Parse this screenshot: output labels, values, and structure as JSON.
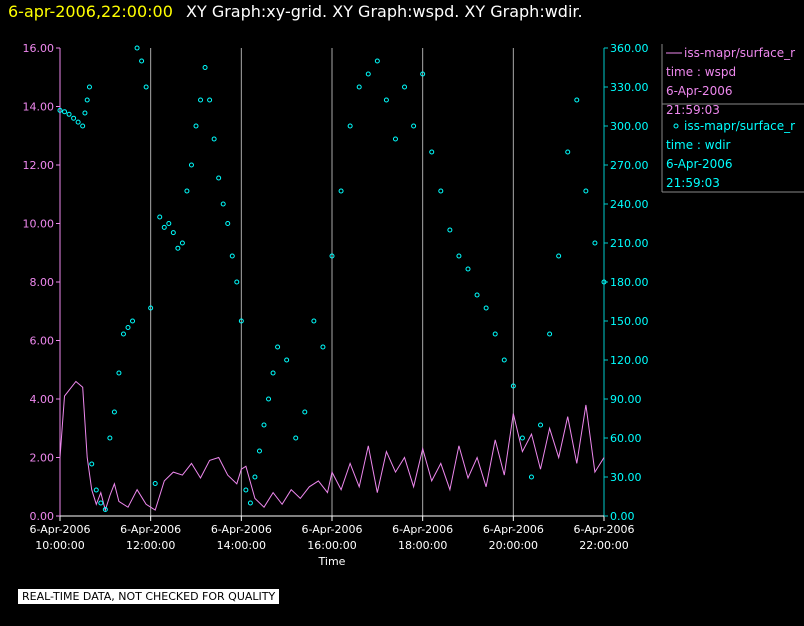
{
  "header": {
    "date_time": "6-apr-2006,22:00:00",
    "graphs": "XY Graph:xy-grid.  XY Graph:wspd.  XY Graph:wdir."
  },
  "footer": {
    "note": "REAL-TIME DATA, NOT CHECKED FOR QUALITY"
  },
  "chart_data": {
    "type": "line",
    "xlabel": "Time",
    "x_ticks": [
      {
        "date": "6-Apr-2006",
        "time": "10:00:00",
        "hour": 10
      },
      {
        "date": "6-Apr-2006",
        "time": "12:00:00",
        "hour": 12
      },
      {
        "date": "6-Apr-2006",
        "time": "14:00:00",
        "hour": 14
      },
      {
        "date": "6-Apr-2006",
        "time": "16:00:00",
        "hour": 16
      },
      {
        "date": "6-Apr-2006",
        "time": "18:00:00",
        "hour": 18
      },
      {
        "date": "6-Apr-2006",
        "time": "20:00:00",
        "hour": 20
      },
      {
        "date": "6-Apr-2006",
        "time": "22:00:00",
        "hour": 22
      }
    ],
    "xlim_hours": [
      10,
      22
    ],
    "y_left": {
      "ylim": [
        0,
        16
      ],
      "ticks": [
        "0.00",
        "2.00",
        "4.00",
        "6.00",
        "8.00",
        "10.00",
        "12.00",
        "14.00",
        "16.00"
      ]
    },
    "y_right": {
      "ylim": [
        0,
        360
      ],
      "ticks": [
        "0.00",
        "30.00",
        "60.00",
        "90.00",
        "120.00",
        "150.00",
        "180.00",
        "210.00",
        "240.00",
        "270.00",
        "300.00",
        "330.00",
        "360.00"
      ]
    },
    "grid": "vertical at each x tick",
    "legend": [
      {
        "symbol": "line",
        "name": "iss-mapr/surface_r",
        "time_label": "time : wspd",
        "date": "6-Apr-2006",
        "time": "21:59:03",
        "color": "#ee88ee"
      },
      {
        "symbol": "circle",
        "name": "iss-mapr/surface_r",
        "time_label": "time : wdir",
        "date": "6-Apr-2006",
        "time": "21:59:03",
        "color": "#00ffff"
      }
    ],
    "series": [
      {
        "name": "wspd",
        "axis": "left",
        "style": "line",
        "color": "#ee88ee",
        "x": [
          10.0,
          10.1,
          10.2,
          10.35,
          10.5,
          10.6,
          10.7,
          10.8,
          10.9,
          11.0,
          11.1,
          11.2,
          11.3,
          11.5,
          11.7,
          11.9,
          12.0,
          12.1,
          12.3,
          12.5,
          12.7,
          12.9,
          13.1,
          13.3,
          13.5,
          13.7,
          13.9,
          14.0,
          14.1,
          14.3,
          14.5,
          14.7,
          14.9,
          15.1,
          15.3,
          15.5,
          15.7,
          15.9,
          16.0,
          16.2,
          16.4,
          16.6,
          16.8,
          17.0,
          17.2,
          17.4,
          17.6,
          17.8,
          18.0,
          18.2,
          18.4,
          18.6,
          18.8,
          19.0,
          19.2,
          19.4,
          19.6,
          19.8,
          20.0,
          20.2,
          20.4,
          20.6,
          20.8,
          21.0,
          21.2,
          21.4,
          21.6,
          21.8,
          22.0
        ],
        "y": [
          2.0,
          4.1,
          4.3,
          4.6,
          4.4,
          2.0,
          0.9,
          0.4,
          0.8,
          0.2,
          0.7,
          1.1,
          0.5,
          0.3,
          0.9,
          0.4,
          0.3,
          0.2,
          1.2,
          1.5,
          1.4,
          1.8,
          1.3,
          1.9,
          2.0,
          1.4,
          1.1,
          1.6,
          1.7,
          0.6,
          0.3,
          0.8,
          0.4,
          0.9,
          0.6,
          1.0,
          1.2,
          0.8,
          1.5,
          0.9,
          1.8,
          1.0,
          2.4,
          0.8,
          2.2,
          1.5,
          2.0,
          1.0,
          2.3,
          1.2,
          1.8,
          0.9,
          2.4,
          1.3,
          2.0,
          1.0,
          2.6,
          1.4,
          3.5,
          2.2,
          2.8,
          1.6,
          3.0,
          2.0,
          3.4,
          1.8,
          3.8,
          1.5,
          2.0
        ]
      },
      {
        "name": "wdir",
        "axis": "right",
        "style": "circle",
        "color": "#00ffff",
        "x": [
          10.0,
          10.1,
          10.2,
          10.3,
          10.4,
          10.5,
          10.55,
          10.6,
          10.65,
          10.7,
          10.8,
          10.9,
          11.0,
          11.1,
          11.2,
          11.3,
          11.4,
          11.5,
          11.6,
          11.7,
          11.8,
          11.9,
          12.0,
          12.1,
          12.2,
          12.3,
          12.4,
          12.5,
          12.6,
          12.7,
          12.8,
          12.9,
          13.0,
          13.1,
          13.2,
          13.3,
          13.4,
          13.5,
          13.6,
          13.7,
          13.8,
          13.9,
          14.0,
          14.1,
          14.2,
          14.3,
          14.4,
          14.5,
          14.6,
          14.7,
          14.8,
          15.0,
          15.2,
          15.4,
          15.6,
          15.8,
          16.0,
          16.2,
          16.4,
          16.6,
          16.8,
          17.0,
          17.2,
          17.4,
          17.6,
          17.8,
          18.0,
          18.2,
          18.4,
          18.6,
          18.8,
          19.0,
          19.2,
          19.4,
          19.6,
          19.8,
          20.0,
          20.2,
          20.4,
          20.6,
          20.8,
          21.0,
          21.2,
          21.4,
          21.6,
          21.8,
          22.0
        ],
        "y": [
          312,
          311,
          309,
          306,
          303,
          300,
          310,
          320,
          330,
          40,
          20,
          10,
          5,
          60,
          80,
          110,
          140,
          145,
          150,
          360,
          350,
          330,
          160,
          25,
          230,
          222,
          225,
          218,
          206,
          210,
          250,
          270,
          300,
          320,
          345,
          320,
          290,
          260,
          240,
          225,
          200,
          180,
          150,
          20,
          10,
          30,
          50,
          70,
          90,
          110,
          130,
          120,
          60,
          80,
          150,
          130,
          200,
          250,
          300,
          330,
          340,
          350,
          320,
          290,
          330,
          300,
          340,
          280,
          250,
          220,
          200,
          190,
          170,
          160,
          140,
          120,
          100,
          60,
          30,
          70,
          140,
          200,
          280,
          320,
          250,
          210,
          180
        ]
      }
    ]
  }
}
